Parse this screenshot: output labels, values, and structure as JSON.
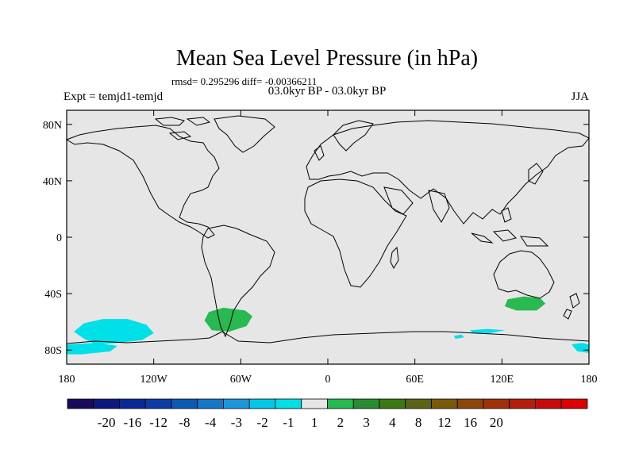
{
  "chart_data": {
    "type": "heatmap",
    "title": "Mean Sea Level Pressure (in hPa)",
    "stats_line": "rmsd= 0.295296 diff= -0.00366211",
    "subtitle": "03.0kyr BP - 03.0kyr BP",
    "left_label": "Expt = temjd1-temjd",
    "right_label": "JJA",
    "xlim": [
      -180,
      180
    ],
    "ylim": [
      -90,
      90
    ],
    "x_ticks": [
      {
        "value": -180,
        "label": "180"
      },
      {
        "value": -120,
        "label": "120W"
      },
      {
        "value": -60,
        "label": "60W"
      },
      {
        "value": 0,
        "label": "0"
      },
      {
        "value": 60,
        "label": "60E"
      },
      {
        "value": 120,
        "label": "120E"
      },
      {
        "value": 180,
        "label": "180"
      }
    ],
    "y_ticks": [
      {
        "value": 80,
        "label": "80N"
      },
      {
        "value": 40,
        "label": "40N"
      },
      {
        "value": 0,
        "label": "0"
      },
      {
        "value": -40,
        "label": "40S"
      },
      {
        "value": -80,
        "label": "80S"
      }
    ],
    "colorbar": {
      "colors": [
        "#1a0a5e",
        "#0c1a80",
        "#0a2896",
        "#0a3ca8",
        "#0a5ab4",
        "#1478c8",
        "#1e96dc",
        "#00c8e6",
        "#00e0e8",
        "#e6e6e6",
        "#28b950",
        "#288c32",
        "#3c7814",
        "#5a6414",
        "#785a0a",
        "#8c460a",
        "#a0320a",
        "#b41e0a",
        "#c80a0a",
        "#dc0000"
      ],
      "labels": [
        "-20",
        "-16",
        "-12",
        "-8",
        "-4",
        "-3",
        "-2",
        "-1",
        "1",
        "2",
        "3",
        "4",
        "8",
        "12",
        "16",
        "20"
      ],
      "label_after_box": [
        1,
        2,
        3,
        4,
        5,
        6,
        7,
        8,
        9,
        10,
        11,
        12,
        13,
        14,
        15,
        16
      ]
    },
    "background_color": "#e6e6e6",
    "anomaly_regions": [
      {
        "name": "south-pacific-negative",
        "bin": "-2 to -1",
        "color": "#00e0e8",
        "points": [
          [
            -168,
            -61
          ],
          [
            -155,
            -58
          ],
          [
            -138,
            -58
          ],
          [
            -125,
            -62
          ],
          [
            -120,
            -68
          ],
          [
            -128,
            -73
          ],
          [
            -145,
            -75
          ],
          [
            -160,
            -76
          ],
          [
            -168,
            -72
          ],
          [
            -175,
            -67
          ]
        ]
      },
      {
        "name": "ross-sea-negative",
        "bin": "-2 to -1",
        "color": "#00e0e8",
        "points": [
          [
            -180,
            -76
          ],
          [
            -160,
            -75
          ],
          [
            -145,
            -77
          ],
          [
            -150,
            -81
          ],
          [
            -170,
            -83
          ],
          [
            -180,
            -83
          ]
        ]
      },
      {
        "name": "drake-passage-positive",
        "bin": "1 to 2",
        "color": "#28b950",
        "points": [
          [
            -82,
            -53
          ],
          [
            -72,
            -50
          ],
          [
            -57,
            -52
          ],
          [
            -52,
            -56
          ],
          [
            -56,
            -63
          ],
          [
            -68,
            -67
          ],
          [
            -80,
            -66
          ],
          [
            -85,
            -59
          ]
        ]
      },
      {
        "name": "south-australia-positive",
        "bin": "1 to 2",
        "color": "#28b950",
        "points": [
          [
            124,
            -44
          ],
          [
            135,
            -42
          ],
          [
            146,
            -43
          ],
          [
            150,
            -47
          ],
          [
            144,
            -52
          ],
          [
            130,
            -52
          ],
          [
            122,
            -49
          ]
        ]
      },
      {
        "name": "indian-ocean-negative-1",
        "bin": "-2 to -1",
        "color": "#00e0e8",
        "points": [
          [
            98,
            -66
          ],
          [
            110,
            -65
          ],
          [
            122,
            -66
          ],
          [
            112,
            -68
          ],
          [
            100,
            -68
          ]
        ]
      },
      {
        "name": "indian-ocean-negative-2",
        "bin": "-2 to -1",
        "color": "#00e0e8",
        "points": [
          [
            87,
            -70
          ],
          [
            92,
            -69
          ],
          [
            94,
            -71
          ],
          [
            88,
            -72
          ]
        ]
      },
      {
        "name": "east-antarctic-negative",
        "bin": "-2 to -1",
        "color": "#00e0e8",
        "points": [
          [
            168,
            -76
          ],
          [
            175,
            -75
          ],
          [
            180,
            -76
          ],
          [
            180,
            -82
          ],
          [
            172,
            -81
          ]
        ]
      }
    ]
  }
}
